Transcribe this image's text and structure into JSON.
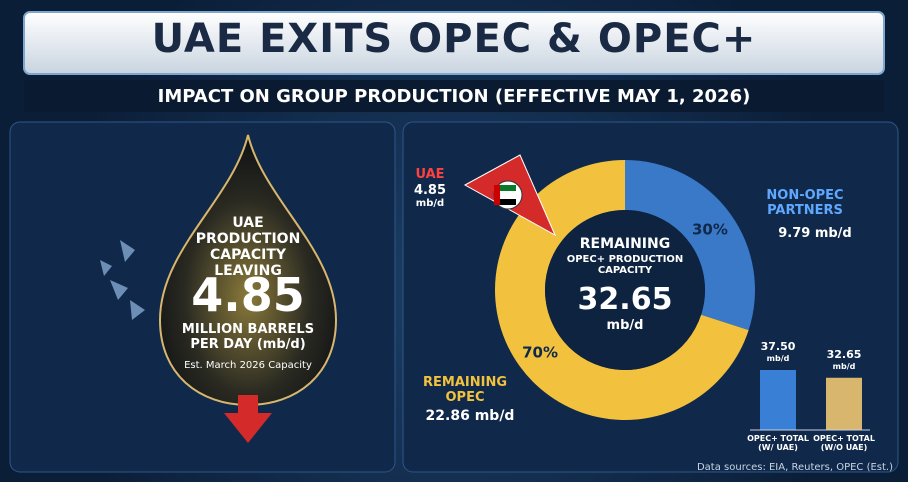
{
  "header": {
    "title": "UAE EXITS OPEC & OPEC+",
    "subtitle": "IMPACT ON GROUP PRODUCTION (EFFECTIVE MAY 1, 2026)"
  },
  "drop": {
    "label": "UAE PRODUCTION CAPACITY LEAVING",
    "value": 4.85,
    "unit": "MILLION BARRELS PER DAY (mb/d)",
    "note": "Est. March 2026 Capacity"
  },
  "chart_data": [
    {
      "type": "donut",
      "categories": [
        "NON-OPEC PARTNERS",
        "REMAINING OPEC"
      ],
      "values": [
        30,
        70
      ],
      "value_labels": [
        "30%",
        "70%"
      ],
      "colors": [
        "#3a78c8",
        "#f2c23e"
      ],
      "amount_labels": [
        "9.79 mb/d",
        "22.86 mb/d"
      ],
      "center_title": "REMAINING",
      "center_subtitle": "OPEC+ PRODUCTION CAPACITY",
      "center_value": 32.65,
      "center_unit": "mb/d",
      "removed": {
        "name": "UAE",
        "value": 4.85,
        "unit": "mb/d",
        "color": "#d42a2a"
      }
    },
    {
      "type": "bar",
      "categories": [
        "OPEC+ TOTAL (W/ UAE)",
        "OPEC+ TOTAL (W/O UAE)"
      ],
      "values": [
        37.5,
        32.65
      ],
      "value_labels": [
        "37.50",
        "32.65"
      ],
      "unit": "mb/d",
      "colors": [
        "#3a7fd6",
        "#d8b66e"
      ]
    }
  ],
  "footer": {
    "source": "Data sources: EIA, Reuters, OPEC (Est.)"
  }
}
